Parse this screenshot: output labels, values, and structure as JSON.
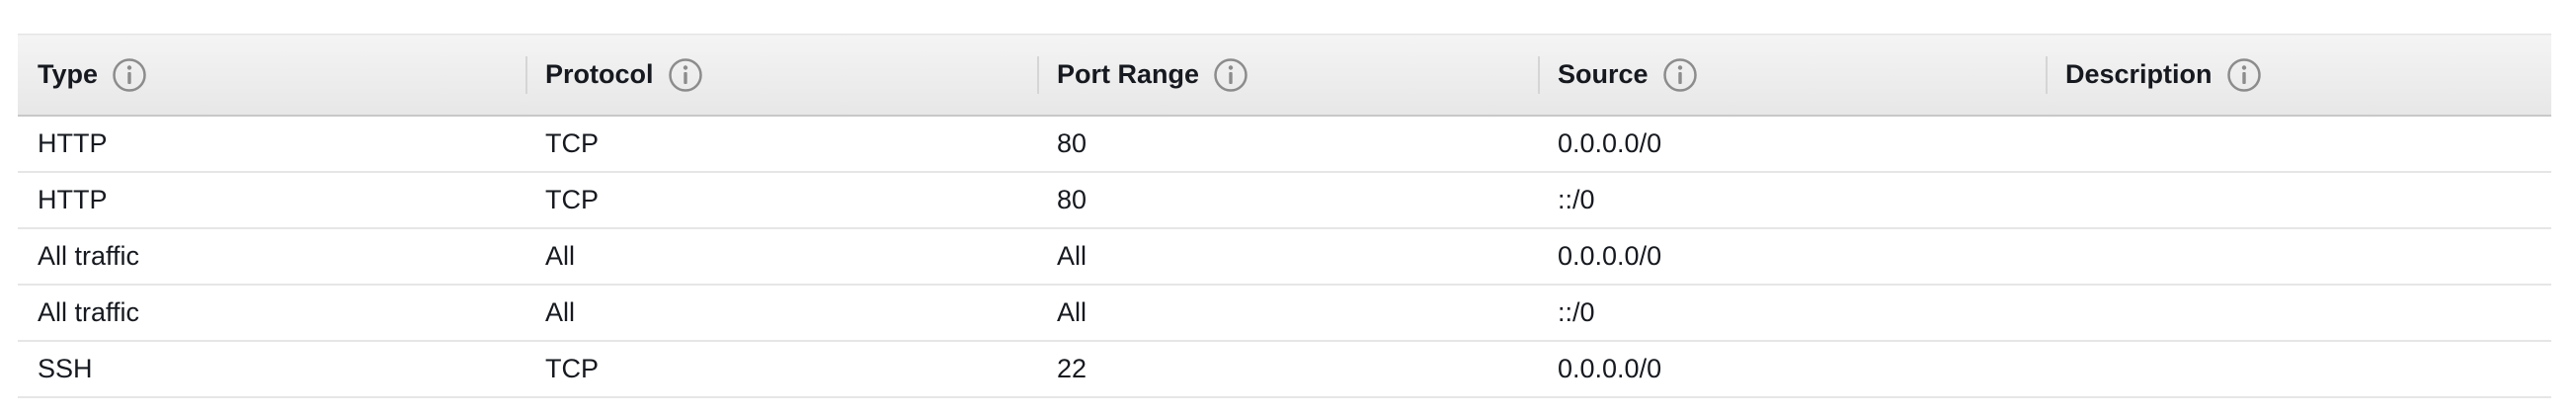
{
  "table": {
    "headers": [
      {
        "label": "Type",
        "icon": "info-icon"
      },
      {
        "label": "Protocol",
        "icon": "info-icon"
      },
      {
        "label": "Port Range",
        "icon": "info-icon"
      },
      {
        "label": "Source",
        "icon": "info-icon"
      },
      {
        "label": "Description",
        "icon": "info-icon"
      }
    ],
    "rows": [
      {
        "type": "HTTP",
        "protocol": "TCP",
        "port_range": "80",
        "source": "0.0.0.0/0",
        "description": ""
      },
      {
        "type": "HTTP",
        "protocol": "TCP",
        "port_range": "80",
        "source": "::/0",
        "description": ""
      },
      {
        "type": "All traffic",
        "protocol": "All",
        "port_range": "All",
        "source": "0.0.0.0/0",
        "description": ""
      },
      {
        "type": "All traffic",
        "protocol": "All",
        "port_range": "All",
        "source": "::/0",
        "description": ""
      },
      {
        "type": "SSH",
        "protocol": "TCP",
        "port_range": "22",
        "source": "0.0.0.0/0",
        "description": ""
      }
    ]
  },
  "colors": {
    "text": "#16191f",
    "info_icon": "#8c8c8c",
    "header_background": "#eaeaea",
    "row_divider": "#e6e6e6"
  }
}
